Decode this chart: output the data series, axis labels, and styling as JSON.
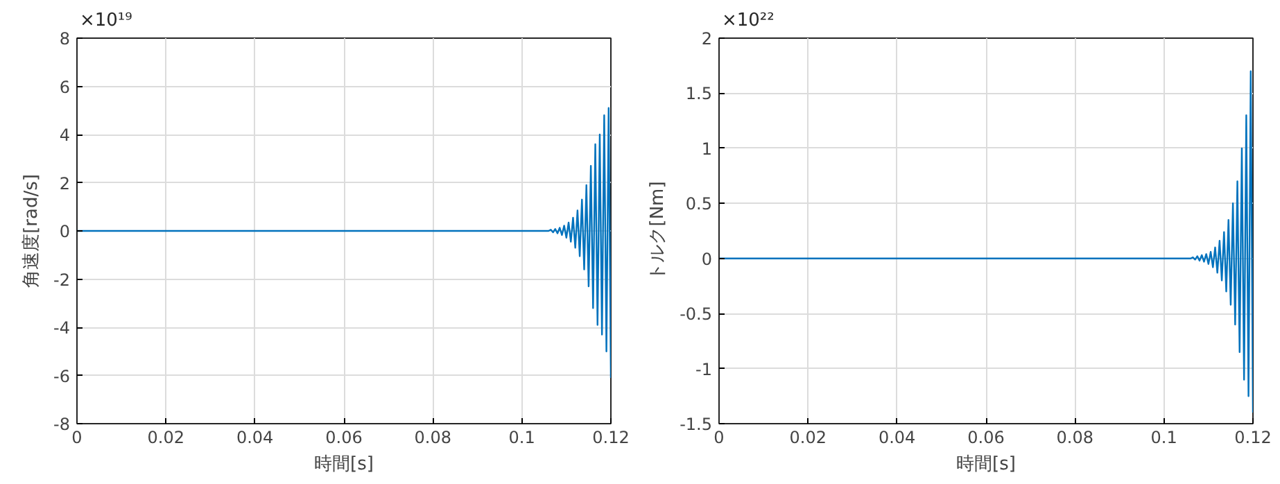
{
  "chart_data": [
    {
      "type": "line",
      "xlabel": "時間[s]",
      "ylabel": "角速度[rad/s]",
      "annotations": [
        "×10¹⁹"
      ],
      "x": [
        0,
        0.106,
        0.1065,
        0.107,
        0.1075,
        0.108,
        0.1085,
        0.109,
        0.1095,
        0.11,
        0.1105,
        0.111,
        0.1115,
        0.112,
        0.1125,
        0.113,
        0.1135,
        0.114,
        0.1145,
        0.115,
        0.1155,
        0.116,
        0.1165,
        0.117,
        0.1175,
        0.118,
        0.1185,
        0.119,
        0.1195,
        0.12
      ],
      "series": [
        {
          "color": "#0072bd",
          "values": [
            0,
            0,
            0.05,
            -0.06,
            0.08,
            -0.1,
            0.13,
            -0.17,
            0.22,
            -0.28,
            0.35,
            -0.45,
            0.55,
            -0.7,
            0.85,
            -1.05,
            1.3,
            -1.6,
            1.9,
            -2.3,
            2.7,
            -3.2,
            3.6,
            -3.9,
            4.0,
            -4.3,
            4.8,
            -5.0,
            5.1,
            -6.1
          ]
        }
      ],
      "xlim": [
        0,
        0.12
      ],
      "xticks": [
        0,
        0.02,
        0.04,
        0.06,
        0.08,
        0.1,
        0.12
      ],
      "ylim": [
        -8,
        8
      ],
      "yticks": [
        -8,
        -6,
        -4,
        -2,
        0,
        2,
        4,
        6,
        8
      ],
      "grid": true,
      "line_style": "solid",
      "marker": "none"
    },
    {
      "type": "line",
      "xlabel": "時間[s]",
      "ylabel": "トルク[Nm]",
      "annotations": [
        "×10²²"
      ],
      "x": [
        0,
        0.106,
        0.1065,
        0.107,
        0.1075,
        0.108,
        0.1085,
        0.109,
        0.1095,
        0.11,
        0.1105,
        0.111,
        0.1115,
        0.112,
        0.1125,
        0.113,
        0.1135,
        0.114,
        0.1145,
        0.115,
        0.1155,
        0.116,
        0.1165,
        0.117,
        0.1175,
        0.118,
        0.1185,
        0.119,
        0.1195,
        0.12
      ],
      "series": [
        {
          "color": "#0072bd",
          "values": [
            0,
            0,
            0.01,
            -0.01,
            0.02,
            -0.02,
            0.03,
            -0.03,
            0.04,
            -0.05,
            0.06,
            -0.08,
            0.1,
            -0.13,
            0.16,
            -0.2,
            0.24,
            -0.3,
            0.35,
            -0.42,
            0.5,
            -0.6,
            0.7,
            -0.85,
            1.0,
            -1.1,
            1.3,
            -1.25,
            1.7,
            -1.4
          ]
        }
      ],
      "xlim": [
        0,
        0.12
      ],
      "xticks": [
        0,
        0.02,
        0.04,
        0.06,
        0.08,
        0.1,
        0.12
      ],
      "ylim": [
        -1.5,
        2
      ],
      "yticks": [
        -1.5,
        -1,
        -0.5,
        0,
        0.5,
        1,
        1.5,
        2
      ],
      "grid": true,
      "line_style": "solid",
      "marker": "none"
    }
  ]
}
